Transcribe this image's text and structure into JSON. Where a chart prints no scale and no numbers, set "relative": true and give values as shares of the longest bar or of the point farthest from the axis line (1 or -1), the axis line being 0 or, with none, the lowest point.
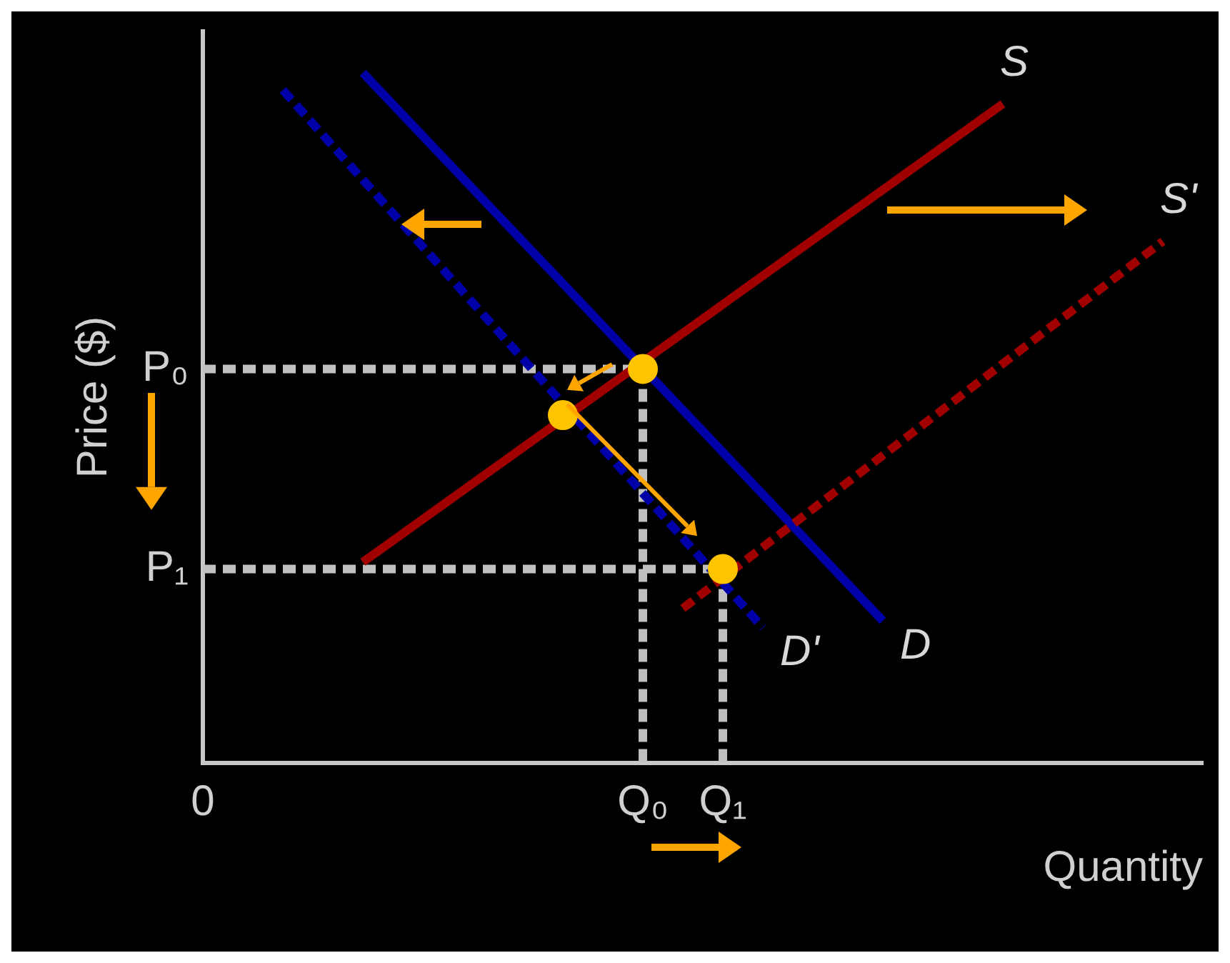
{
  "chart_data": {
    "type": "line",
    "xlabel": "Quantity",
    "ylabel": "Price ($)",
    "relative": true,
    "legend": false,
    "categories": [
      "0",
      null,
      null,
      null,
      null,
      null,
      null,
      null,
      null,
      null,
      null,
      "Q₀",
      null,
      "Q₁",
      null,
      null,
      null,
      null,
      null,
      null,
      null,
      null,
      null,
      null,
      null,
      null
    ],
    "annotations": [
      {
        "text": "P₀",
        "x": "0",
        "y": 0.571
      },
      {
        "text": "P₁",
        "x": "0",
        "y": 0.281
      }
    ],
    "series": [
      {
        "name": "S",
        "color": "#a00000",
        "line_style": "solid",
        "values": [
          null,
          null,
          null,
          null,
          0.291,
          null,
          null,
          null,
          null,
          null,
          null,
          null,
          null,
          null,
          null,
          null,
          null,
          null,
          null,
          null,
          0.955,
          null,
          null,
          null,
          null,
          null
        ]
      },
      {
        "name": "S'",
        "color": "#a00000",
        "line_style": "dashed",
        "values": [
          null,
          null,
          null,
          null,
          null,
          null,
          null,
          null,
          null,
          null,
          null,
          null,
          0.224,
          null,
          null,
          null,
          null,
          null,
          null,
          null,
          null,
          null,
          null,
          null,
          0.756,
          null
        ]
      },
      {
        "name": "D",
        "color": "#0000a8",
        "line_style": "solid",
        "values": [
          null,
          null,
          null,
          null,
          1,
          null,
          null,
          null,
          null,
          null,
          null,
          null,
          null,
          null,
          null,
          null,
          null,
          0.206,
          null,
          null,
          null,
          null,
          null,
          null,
          null,
          null
        ]
      },
      {
        "name": "D'",
        "color": "#0000a8",
        "line_style": "dashed",
        "values": [
          null,
          null,
          0.975,
          null,
          null,
          null,
          null,
          null,
          null,
          null,
          null,
          null,
          null,
          null,
          0.196,
          null,
          null,
          null,
          null,
          null,
          null,
          null,
          null,
          null,
          null,
          null
        ]
      },
      {
        "type": "step",
        "color": "#c0c0c0",
        "line_style": "dashed",
        "values": [
          0.571,
          0.571,
          0.571,
          0.571,
          0.571,
          0.571,
          0.571,
          0.571,
          0.571,
          0.571,
          0.571,
          0,
          null,
          null,
          null,
          null,
          null,
          null,
          null,
          null,
          null,
          null,
          null,
          null,
          null,
          null
        ]
      },
      {
        "type": "step",
        "color": "#c0c0c0",
        "line_style": "dashed",
        "values": [
          0.281,
          0.281,
          0.281,
          0.281,
          0.281,
          0.281,
          0.281,
          0.281,
          0.281,
          0.281,
          0.281,
          0.281,
          0.281,
          0,
          null,
          null,
          null,
          null,
          null,
          null,
          null,
          null,
          null,
          null,
          null,
          null
        ]
      },
      {
        "type": "scatter",
        "color": "#ffc400",
        "marker": "circle",
        "values": [
          null,
          null,
          null,
          null,
          null,
          null,
          null,
          null,
          null,
          0.504,
          null,
          0.571,
          null,
          0.281,
          null,
          null,
          null,
          null,
          null,
          null,
          null,
          null,
          null,
          null,
          null,
          null
        ]
      }
    ]
  }
}
